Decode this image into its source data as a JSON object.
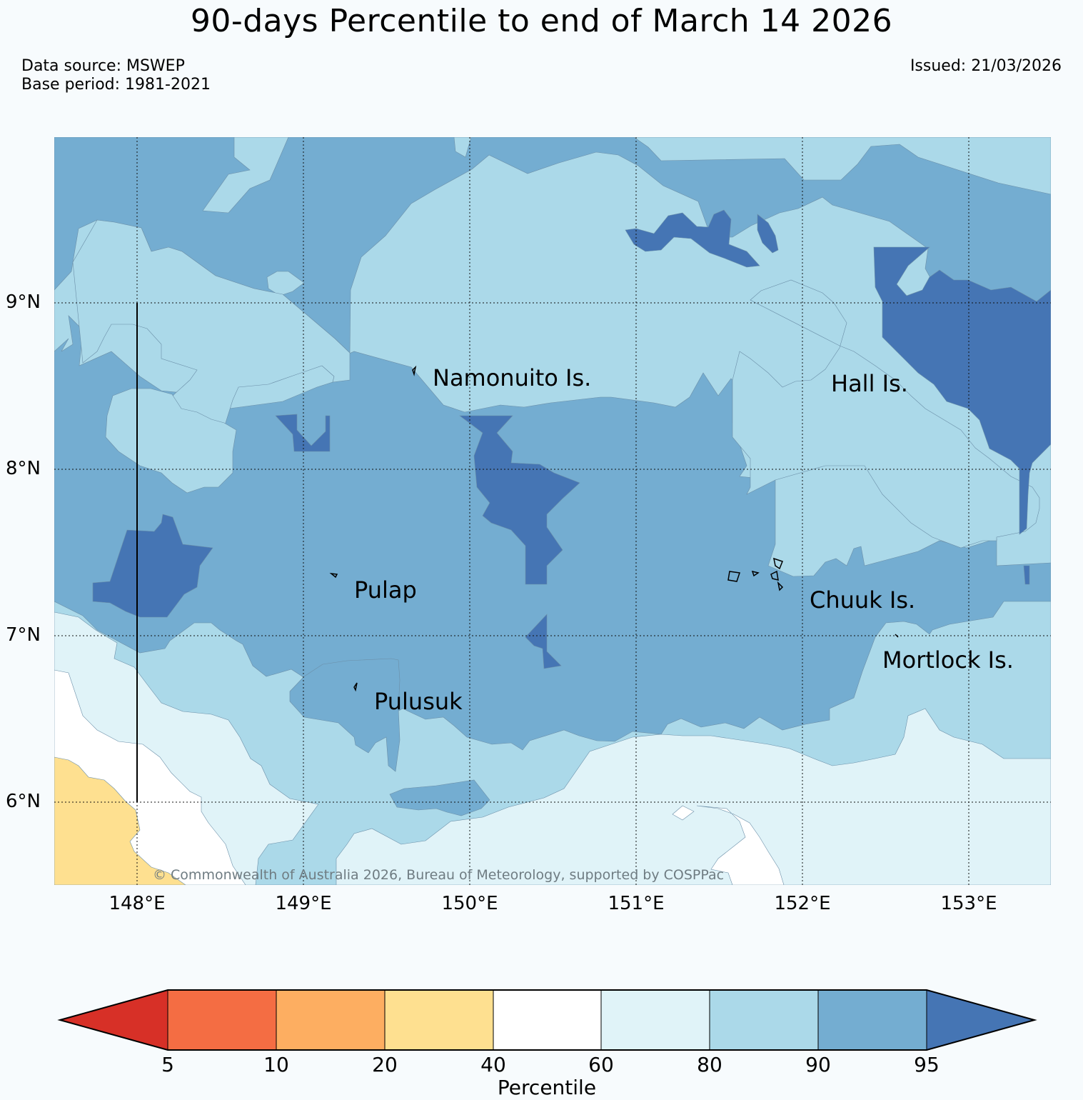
{
  "header": {
    "title": "90-days Percentile to end of March 14 2026",
    "data_source": "Data source: MSWEP",
    "base_period": "Base period: 1981-2021",
    "issued": "Issued: 21/03/2026"
  },
  "map": {
    "latitude_labels": [
      "9°N",
      "8°N",
      "7°N",
      "6°N"
    ],
    "longitude_labels": [
      "148°E",
      "149°E",
      "150°E",
      "151°E",
      "152°E",
      "153°E"
    ],
    "places": [
      {
        "name": "Namonuito Is."
      },
      {
        "name": "Hall Is."
      },
      {
        "name": "Pulap"
      },
      {
        "name": "Chuuk Is."
      },
      {
        "name": "Mortlock Is."
      },
      {
        "name": "Pulusuk"
      }
    ],
    "copyright": "© Commonwealth of Australia 2026, Bureau of Meteorology, supported by COSPPac"
  },
  "colorbar": {
    "label": "Percentile",
    "ticks": [
      "5",
      "10",
      "20",
      "40",
      "60",
      "80",
      "90",
      "95"
    ],
    "colors": {
      "below_5": "#d73027",
      "p5_10": "#f46d43",
      "p10_20": "#fdae61",
      "p20_40": "#fee090",
      "p40_60": "#ffffff",
      "p60_80": "#e0f3f8",
      "p80_90": "#abd9e9",
      "p90_95": "#74add1",
      "above_95": "#4575b4"
    }
  }
}
